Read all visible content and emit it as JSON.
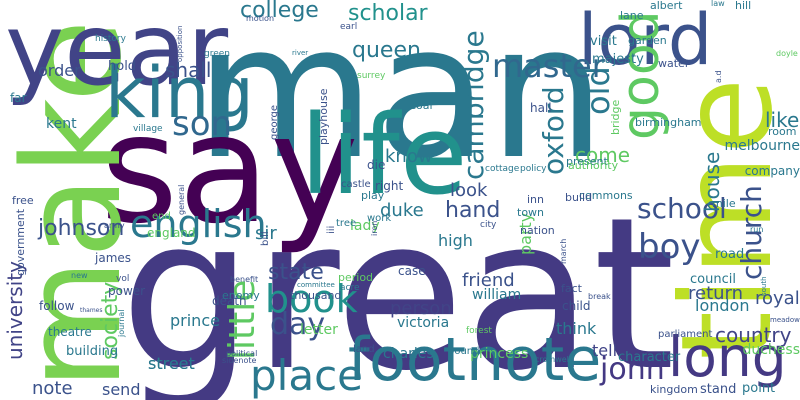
{
  "words": [
    {
      "text": "man",
      "color": "#2a788e"
    },
    {
      "text": "great",
      "color": "#443a83"
    },
    {
      "text": "say",
      "color": "#440154"
    },
    {
      "text": "make",
      "color": "#7ad151"
    },
    {
      "text": "time",
      "color": "#bddf26"
    },
    {
      "text": "life",
      "color": "#21918c"
    },
    {
      "text": "year",
      "color": "#414487"
    },
    {
      "text": "lord",
      "color": "#3b528b"
    },
    {
      "text": "king",
      "color": "#2a788e"
    },
    {
      "text": "good",
      "color": "#5ec962"
    },
    {
      "text": "footnote",
      "color": "#2a788e"
    },
    {
      "text": "long",
      "color": "#443983"
    },
    {
      "text": "book",
      "color": "#21918c"
    },
    {
      "text": "english",
      "color": "#2a788e"
    },
    {
      "text": "place",
      "color": "#2a788e"
    },
    {
      "text": "little",
      "color": "#5ec962"
    },
    {
      "text": "old",
      "color": "#2a788e"
    },
    {
      "text": "son",
      "color": "#31688e"
    },
    {
      "text": "master",
      "color": "#31688e"
    },
    {
      "text": "school",
      "color": "#3b528b"
    },
    {
      "text": "church",
      "color": "#3b528b"
    },
    {
      "text": "cambridge",
      "color": "#2a788e"
    },
    {
      "text": "oxford",
      "color": "#2a788e"
    },
    {
      "text": "john",
      "color": "#443983"
    },
    {
      "text": "boy",
      "color": "#3b528b"
    },
    {
      "text": "day",
      "color": "#3b528b"
    },
    {
      "text": "college",
      "color": "#2a788e"
    },
    {
      "text": "scholar",
      "color": "#21918c"
    },
    {
      "text": "queen",
      "color": "#2a788e"
    },
    {
      "text": "johnson",
      "color": "#3b528b"
    },
    {
      "text": "state",
      "color": "#3b528b"
    },
    {
      "text": "society",
      "color": "#5ec962"
    },
    {
      "text": "university",
      "color": "#414487"
    },
    {
      "text": "hand",
      "color": "#3b528b"
    },
    {
      "text": "come",
      "color": "#5ec962"
    },
    {
      "text": "house",
      "color": "#2a788e"
    },
    {
      "text": "like",
      "color": "#2a788e"
    },
    {
      "text": "country",
      "color": "#414487"
    },
    {
      "text": "shall",
      "color": "#3b528b"
    },
    {
      "text": "know",
      "color": "#2a788e"
    },
    {
      "text": "look",
      "color": "#3b528b"
    },
    {
      "text": "sir",
      "color": "#2a788e"
    },
    {
      "text": "person",
      "color": "#414487"
    },
    {
      "text": "friend",
      "color": "#3b528b"
    },
    {
      "text": "return",
      "color": "#3b528b"
    },
    {
      "text": "royal",
      "color": "#3b528b"
    },
    {
      "text": "duke",
      "color": "#2a788e"
    },
    {
      "text": "london",
      "color": "#2a788e"
    },
    {
      "text": "note",
      "color": "#3b528b"
    },
    {
      "text": "prince",
      "color": "#2a788e"
    },
    {
      "text": "think",
      "color": "#2a788e"
    },
    {
      "text": "tell",
      "color": "#414487"
    },
    {
      "text": "high",
      "color": "#2a788e"
    },
    {
      "text": "party",
      "color": "#5ec962"
    },
    {
      "text": "street",
      "color": "#2a788e"
    },
    {
      "text": "send",
      "color": "#3b528b"
    },
    {
      "text": "order",
      "color": "#3b528b"
    },
    {
      "text": "kent",
      "color": "#2a788e"
    },
    {
      "text": "lady",
      "color": "#5ec962"
    },
    {
      "text": "letter",
      "color": "#5ec962"
    },
    {
      "text": "melbourne",
      "color": "#2a788e"
    },
    {
      "text": "princess",
      "color": "#5ec962"
    },
    {
      "text": "duchess",
      "color": "#5ec962"
    },
    {
      "text": "victoria",
      "color": "#2a788e"
    },
    {
      "text": "charles",
      "color": "#2a788e"
    },
    {
      "text": "william",
      "color": "#2a788e"
    },
    {
      "text": "character",
      "color": "#2a788e"
    },
    {
      "text": "council",
      "color": "#2a788e"
    },
    {
      "text": "road",
      "color": "#2a788e"
    },
    {
      "text": "hold",
      "color": "#3b528b"
    },
    {
      "text": "majesty",
      "color": "#2a788e"
    },
    {
      "text": "hall",
      "color": "#3b528b"
    },
    {
      "text": "visit",
      "color": "#2a788e"
    },
    {
      "text": "garden",
      "color": "#2a788e"
    },
    {
      "text": "albert",
      "color": "#2a788e"
    },
    {
      "text": "lane",
      "color": "#2a788e"
    },
    {
      "text": "hill",
      "color": "#2a788e"
    },
    {
      "text": "water",
      "color": "#3b528b"
    },
    {
      "text": "bridge",
      "color": "#5ec962"
    },
    {
      "text": "birmingham",
      "color": "#2a788e"
    },
    {
      "text": "room",
      "color": "#2a788e"
    },
    {
      "text": "company",
      "color": "#2a788e"
    },
    {
      "text": "mile",
      "color": "#2a788e"
    },
    {
      "text": "present",
      "color": "#2a788e"
    },
    {
      "text": "authority",
      "color": "#5ec962"
    },
    {
      "text": "commons",
      "color": "#2a788e"
    },
    {
      "text": "build",
      "color": "#3b528b"
    },
    {
      "text": "town",
      "color": "#2a788e"
    },
    {
      "text": "inn",
      "color": "#3b528b"
    },
    {
      "text": "nation",
      "color": "#3b528b"
    },
    {
      "text": "case",
      "color": "#3b528b"
    },
    {
      "text": "fact",
      "color": "#3b528b"
    },
    {
      "text": "child",
      "color": "#3b528b"
    },
    {
      "text": "point",
      "color": "#2a788e"
    },
    {
      "text": "stand",
      "color": "#3b528b"
    },
    {
      "text": "kingdom",
      "color": "#3b528b"
    },
    {
      "text": "parliament",
      "color": "#3b528b"
    },
    {
      "text": "thousand",
      "color": "#3b528b"
    },
    {
      "text": "building",
      "color": "#2a788e"
    },
    {
      "text": "theatre",
      "color": "#2a788e"
    },
    {
      "text": "follow",
      "color": "#3b528b"
    },
    {
      "text": "death",
      "color": "#3b528b"
    },
    {
      "text": "power",
      "color": "#3b528b"
    },
    {
      "text": "james",
      "color": "#3b528b"
    },
    {
      "text": "england",
      "color": "#5ec962"
    },
    {
      "text": "government",
      "color": "#3b528b"
    },
    {
      "text": "play",
      "color": "#2a788e"
    },
    {
      "text": "die",
      "color": "#3b528b"
    },
    {
      "text": "right",
      "color": "#3b528b"
    },
    {
      "text": "castle",
      "color": "#3b528b"
    },
    {
      "text": "playhouse",
      "color": "#3b528b"
    },
    {
      "text": "coal",
      "color": "#2a788e"
    },
    {
      "text": "george",
      "color": "#3b528b"
    },
    {
      "text": "far",
      "color": "#2a788e"
    },
    {
      "text": "free",
      "color": "#3b528b"
    },
    {
      "text": "period",
      "color": "#5ec962"
    },
    {
      "text": "work",
      "color": "#2a788e"
    },
    {
      "text": "tree",
      "color": "#2a788e"
    },
    {
      "text": "iii",
      "color": "#3b528b"
    },
    {
      "text": "bill",
      "color": "#3b528b"
    },
    {
      "text": "end",
      "color": "#5ec962"
    },
    {
      "text": "enemy",
      "color": "#2a788e"
    },
    {
      "text": "land",
      "color": "#3b528b"
    },
    {
      "text": "pound",
      "color": "#2a788e"
    },
    {
      "text": "street",
      "color": "#2a788e"
    },
    {
      "text": "history",
      "color": "#2a788e"
    },
    {
      "text": "green",
      "color": "#2a788e"
    },
    {
      "text": "earl",
      "color": "#3b528b"
    },
    {
      "text": "surrey",
      "color": "#5ec962"
    },
    {
      "text": "village",
      "color": "#2a788e"
    },
    {
      "text": "city",
      "color": "#3b528b"
    },
    {
      "text": "acre",
      "color": "#2a788e"
    },
    {
      "text": "cottage",
      "color": "#2a788e"
    },
    {
      "text": "policy",
      "color": "#2a788e"
    },
    {
      "text": "forest",
      "color": "#5ec962"
    },
    {
      "text": "vol",
      "color": "#3b528b"
    },
    {
      "text": "benefit",
      "color": "#3b528b"
    },
    {
      "text": "army",
      "color": "#3b528b"
    },
    {
      "text": "motion",
      "color": "#3b528b"
    },
    {
      "text": "law",
      "color": "#2a788e"
    },
    {
      "text": "run",
      "color": "#2a788e"
    },
    {
      "text": "political",
      "color": "#3b528b"
    },
    {
      "text": "sidenote",
      "color": "#3b528b"
    },
    {
      "text": "cromwell",
      "color": "#2a788e"
    },
    {
      "text": "journal",
      "color": "#2a788e"
    },
    {
      "text": "committee",
      "color": "#2a788e"
    },
    {
      "text": "break",
      "color": "#3b528b"
    },
    {
      "text": "march",
      "color": "#3b528b"
    },
    {
      "text": "new",
      "color": "#2a788e"
    },
    {
      "text": "iron",
      "color": "#3b528b"
    },
    {
      "text": "general",
      "color": "#3b528b"
    },
    {
      "text": "a.d",
      "color": "#3b528b"
    },
    {
      "text": "opposition",
      "color": "#3b528b"
    },
    {
      "text": "river",
      "color": "#2a788e"
    },
    {
      "text": "meadow",
      "color": "#3b528b"
    },
    {
      "text": "doyle",
      "color": "#5ec962"
    },
    {
      "text": "south",
      "color": "#2a788e"
    },
    {
      "text": "thames",
      "color": "#3b528b"
    }
  ]
}
